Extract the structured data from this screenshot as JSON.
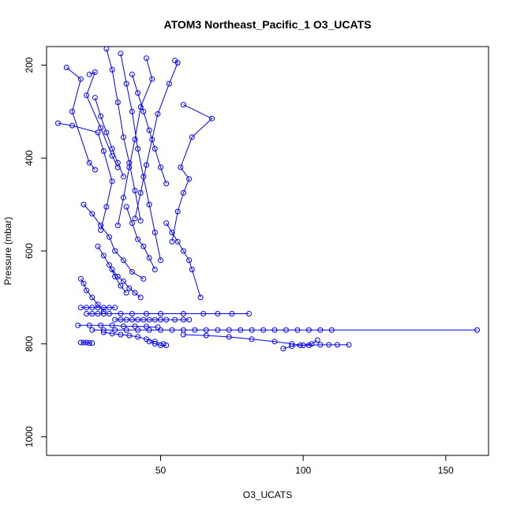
{
  "chart_data": {
    "type": "line",
    "title": "ATOM3 Northeast_Pacific_1 O3_UCATS",
    "xlabel": "O3_UCATS",
    "ylabel": "Pressure (mbar)",
    "xlim": [
      10,
      165
    ],
    "ylim": [
      1040,
      160
    ],
    "y_reversed": true,
    "x_ticks": [
      50,
      100,
      150
    ],
    "y_ticks": [
      200,
      400,
      600,
      800,
      1000
    ],
    "grid": false,
    "legend": "none",
    "marker": "open-circle",
    "color": "#0000ff",
    "series": [
      {
        "x": [
          17,
          22,
          19,
          25,
          27
        ],
        "y": [
          205,
          230,
          300,
          410,
          425
        ]
      },
      {
        "x": [
          25,
          27,
          24,
          29,
          33,
          35
        ],
        "y": [
          220,
          215,
          265,
          335,
          395,
          420
        ]
      },
      {
        "x": [
          31,
          33,
          35,
          37,
          39,
          41,
          43
        ],
        "y": [
          165,
          210,
          280,
          355,
          410,
          470,
          535
        ]
      },
      {
        "x": [
          36,
          38,
          40,
          42,
          44,
          46,
          48,
          50
        ],
        "y": [
          175,
          240,
          300,
          380,
          440,
          500,
          560,
          620
        ]
      },
      {
        "x": [
          45,
          47,
          43,
          41,
          39,
          37,
          35
        ],
        "y": [
          185,
          230,
          290,
          360,
          420,
          485,
          545
        ]
      },
      {
        "x": [
          55,
          56,
          53,
          49,
          47,
          45,
          43,
          41
        ],
        "y": [
          190,
          195,
          240,
          305,
          360,
          415,
          475,
          530
        ]
      },
      {
        "x": [
          14,
          19,
          28,
          30,
          33,
          31,
          29
        ],
        "y": [
          325,
          330,
          345,
          385,
          450,
          505,
          555
        ]
      },
      {
        "x": [
          58,
          68,
          61,
          57,
          60,
          58,
          56,
          54
        ],
        "y": [
          285,
          315,
          355,
          420,
          445,
          475,
          515,
          580
        ]
      },
      {
        "x": [
          23,
          26,
          29,
          32,
          34,
          37,
          40,
          44
        ],
        "y": [
          500,
          520,
          545,
          570,
          600,
          620,
          645,
          660
        ]
      },
      {
        "x": [
          38,
          40,
          42,
          44,
          46,
          48
        ],
        "y": [
          505,
          540,
          575,
          590,
          615,
          640
        ]
      },
      {
        "x": [
          52,
          54,
          56,
          58,
          60,
          61,
          64
        ],
        "y": [
          540,
          560,
          580,
          600,
          620,
          640,
          700
        ]
      },
      {
        "x": [
          28,
          30,
          32,
          34,
          36,
          38
        ],
        "y": [
          590,
          610,
          630,
          655,
          675,
          690
        ]
      },
      {
        "x": [
          22,
          23,
          24,
          26,
          28,
          30
        ],
        "y": [
          660,
          670,
          685,
          700,
          715,
          730
        ]
      },
      {
        "x": [
          24,
          26,
          28,
          30,
          32,
          36,
          40,
          45,
          50,
          58,
          65,
          70,
          75,
          81
        ],
        "y": [
          735,
          735,
          735,
          735,
          735,
          735,
          735,
          735,
          735,
          735,
          735,
          735,
          735,
          735
        ]
      },
      {
        "x": [
          26,
          30,
          34,
          38,
          42,
          46,
          50,
          54,
          58,
          62,
          66,
          70,
          74,
          78,
          82,
          86,
          90,
          94,
          98,
          102,
          106,
          110,
          161
        ],
        "y": [
          770,
          770,
          770,
          770,
          770,
          770,
          770,
          770,
          770,
          770,
          770,
          770,
          770,
          770,
          770,
          770,
          770,
          770,
          770,
          770,
          770,
          770,
          770
        ]
      },
      {
        "x": [
          21,
          25,
          29,
          33,
          37,
          41,
          45,
          49
        ],
        "y": [
          760,
          760,
          760,
          760,
          762,
          762,
          763,
          764
        ]
      },
      {
        "x": [
          22,
          24,
          26,
          28,
          30,
          32,
          34
        ],
        "y": [
          722,
          722,
          722,
          722,
          722,
          722,
          722
        ]
      },
      {
        "x": [
          30,
          33,
          36,
          39,
          42,
          45,
          48,
          51
        ],
        "y": [
          775,
          778,
          780,
          782,
          785,
          790,
          795,
          800
        ]
      },
      {
        "x": [
          22,
          23,
          24,
          25,
          26
        ],
        "y": [
          797,
          797,
          797,
          798,
          798
        ]
      },
      {
        "x": [
          58,
          66,
          74,
          82,
          90,
          96,
          100,
          103,
          105
        ],
        "y": [
          780,
          782,
          785,
          790,
          795,
          800,
          803,
          800,
          792
        ]
      },
      {
        "x": [
          93,
          96,
          99,
          102,
          106,
          109,
          112,
          116
        ],
        "y": [
          810,
          805,
          803,
          803,
          802,
          802,
          802,
          802
        ]
      },
      {
        "x": [
          46,
          48,
          50,
          52
        ],
        "y": [
          795,
          800,
          803,
          803
        ]
      },
      {
        "x": [
          34,
          36,
          38,
          40,
          42,
          44,
          46,
          48,
          50,
          52,
          55,
          58,
          60
        ],
        "y": [
          748,
          748,
          748,
          748,
          748,
          748,
          748,
          748,
          748,
          748,
          748,
          748,
          748
        ]
      },
      {
        "x": [
          33,
          35,
          37,
          39,
          41,
          43
        ],
        "y": [
          640,
          655,
          665,
          680,
          690,
          700
        ]
      },
      {
        "x": [
          40,
          42,
          44,
          46,
          48,
          50,
          52
        ],
        "y": [
          220,
          260,
          300,
          340,
          380,
          420,
          455
        ]
      },
      {
        "x": [
          27,
          29,
          31,
          33,
          35,
          37
        ],
        "y": [
          270,
          310,
          345,
          380,
          410,
          440
        ]
      }
    ]
  }
}
